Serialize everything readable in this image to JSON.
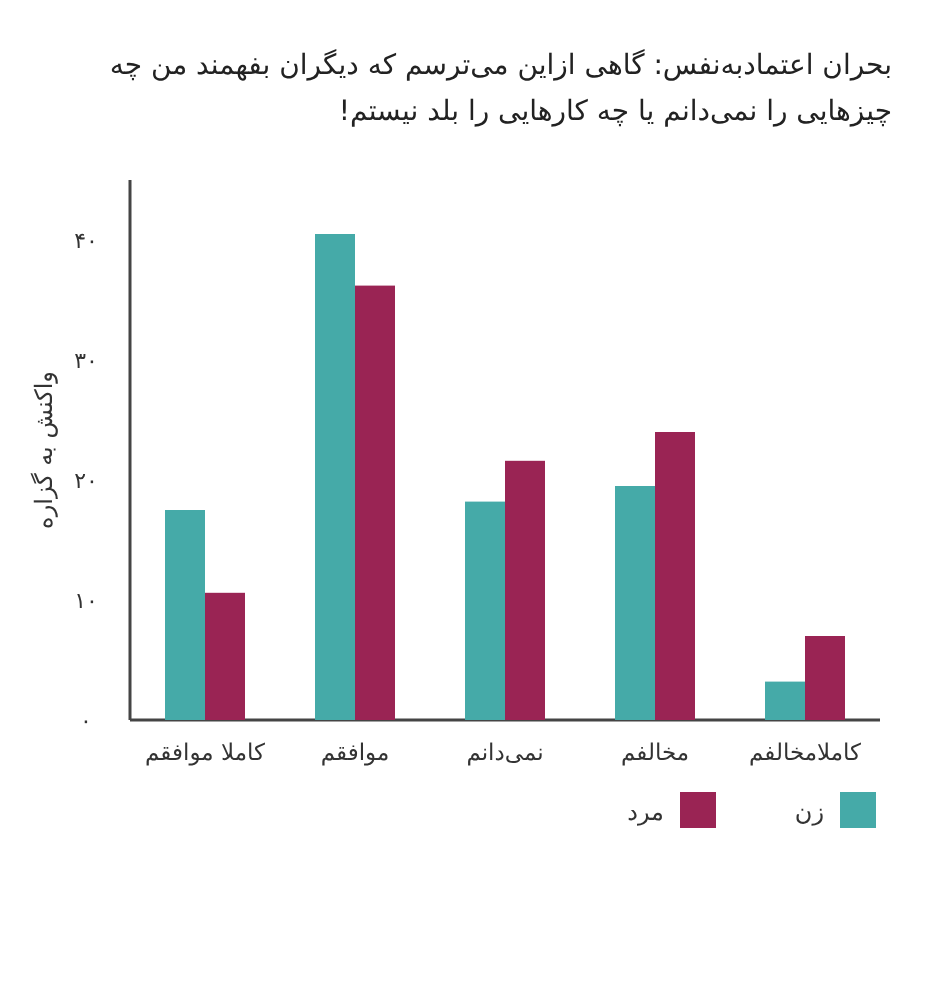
{
  "chart_data": {
    "type": "bar",
    "title": "بحران اعتمادبه‌نفس: گاهی ازاین می‌ترسم که دیگران بفهمند من چه چیزهایی را نمی‌دانم یا چه کارهایی را بلد نیستم!",
    "ylabel": "واکنش به گزاره",
    "categories": [
      "کاملا موافقم",
      "موافقم",
      "نمی‌دانم",
      "مخالفم",
      "کاملامخالفم"
    ],
    "series": [
      {
        "name": "زن",
        "color": "#45aaa8",
        "values": [
          17.5,
          40.5,
          18.2,
          19.5,
          3.2
        ]
      },
      {
        "name": "مرد",
        "color": "#9a2454",
        "values": [
          10.6,
          36.2,
          21.6,
          24,
          7
        ]
      }
    ],
    "ylim": [
      0,
      45
    ],
    "yticks": [
      {
        "value": 0,
        "label": "۰"
      },
      {
        "value": 10,
        "label": "۱۰"
      },
      {
        "value": 20,
        "label": "۲۰"
      },
      {
        "value": 30,
        "label": "۳۰"
      },
      {
        "value": 40,
        "label": "۴۰"
      }
    ],
    "grid": false,
    "legend": "bottom"
  }
}
